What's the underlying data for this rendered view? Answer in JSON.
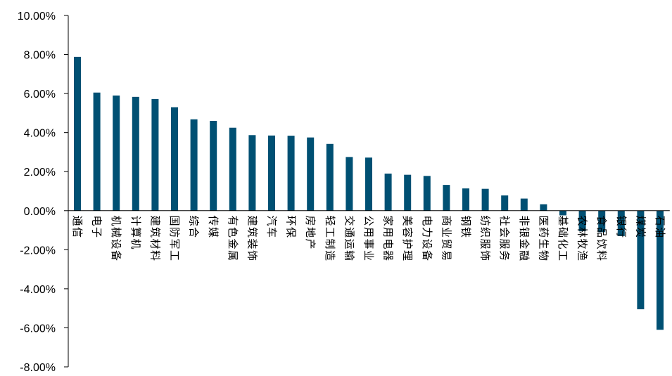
{
  "chart_data": {
    "type": "bar",
    "title": "",
    "xlabel": "",
    "ylabel": "",
    "ylim": [
      -8,
      10
    ],
    "y_tick_step": 2,
    "y_tick_format": "percent_2dp",
    "grid": false,
    "legend": "none",
    "bar_color": "#005073",
    "categories": [
      "通信",
      "电子",
      "机械设备",
      "计算机",
      "建筑材料",
      "国防军工",
      "综合",
      "传媒",
      "有色金属",
      "建筑装饰",
      "汽车",
      "环保",
      "房地产",
      "轻工制造",
      "交通运输",
      "公用事业",
      "家用电器",
      "美容护理",
      "电力设备",
      "商业贸易",
      "钢铁",
      "纺织服饰",
      "社会服务",
      "非银金融",
      "医药生物",
      "基础化工",
      "农林牧渔",
      "食品饮料",
      "银行",
      "煤炭",
      "石油"
    ],
    "values": [
      7.88,
      6.05,
      5.9,
      5.83,
      5.72,
      5.3,
      4.68,
      4.6,
      4.25,
      3.87,
      3.85,
      3.84,
      3.75,
      3.42,
      2.75,
      2.72,
      1.9,
      1.84,
      1.78,
      1.32,
      1.14,
      1.12,
      0.78,
      0.62,
      0.33,
      -0.24,
      -1.05,
      -1.1,
      -1.3,
      -5.05,
      -6.1
    ]
  }
}
